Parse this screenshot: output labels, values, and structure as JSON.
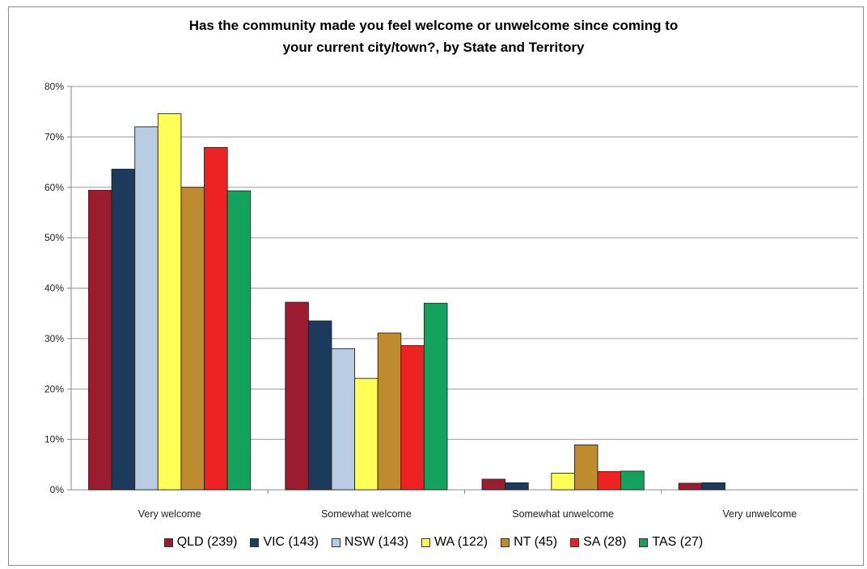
{
  "chart_data": {
    "type": "bar",
    "title_lines": [
      "Has the community made you feel welcome or unwelcome since coming to",
      "your current city/town?, by State and Territory"
    ],
    "categories": [
      "Very welcome",
      "Somewhat welcome",
      "Somewhat unwelcome",
      "Very unwelcome"
    ],
    "y_ticks": [
      "0%",
      "10%",
      "20%",
      "30%",
      "40%",
      "50%",
      "60%",
      "70%",
      "80%"
    ],
    "ylim": [
      0,
      80
    ],
    "grid": true,
    "legend_position": "bottom",
    "series": [
      {
        "name": "QLD (239)",
        "color": "#9b1c2e",
        "values": [
          59.4,
          37.2,
          2.1,
          1.3
        ]
      },
      {
        "name": "VIC (143)",
        "color": "#1b3a5c",
        "values": [
          63.6,
          33.5,
          1.4,
          1.4
        ]
      },
      {
        "name": "NSW (143)",
        "color": "#b8cde4",
        "values": [
          72.0,
          28.0,
          0,
          0
        ]
      },
      {
        "name": "WA (122)",
        "color": "#ffff55",
        "values": [
          74.6,
          22.1,
          3.3,
          0
        ]
      },
      {
        "name": "NT (45)",
        "color": "#c08a2e",
        "values": [
          60.0,
          31.1,
          8.9,
          0
        ]
      },
      {
        "name": "SA (28)",
        "color": "#ee2222",
        "values": [
          67.9,
          28.6,
          3.6,
          0
        ]
      },
      {
        "name": "TAS (27)",
        "color": "#14a35c",
        "values": [
          59.3,
          37.0,
          3.7,
          0
        ]
      }
    ]
  }
}
